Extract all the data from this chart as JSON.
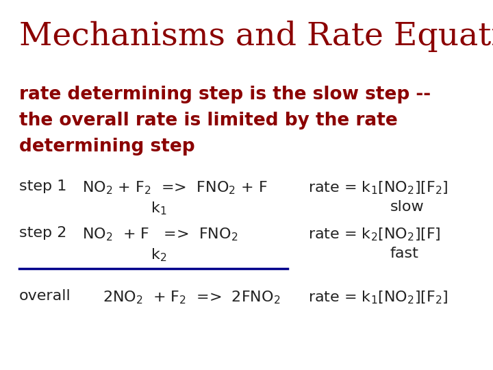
{
  "title": "Mechanisms and Rate Equations",
  "title_color": "#8B0000",
  "title_fontsize": 34,
  "subtitle_color": "#8B0000",
  "subtitle_fontsize": 19,
  "body_fontsize": 16,
  "background_color": "#FFFFFF",
  "line_color": "#00008B",
  "subtitle_line1": "rate determining step is the slow step --",
  "subtitle_line2": "the overall rate is limited by the rate",
  "subtitle_line3": "determining step"
}
